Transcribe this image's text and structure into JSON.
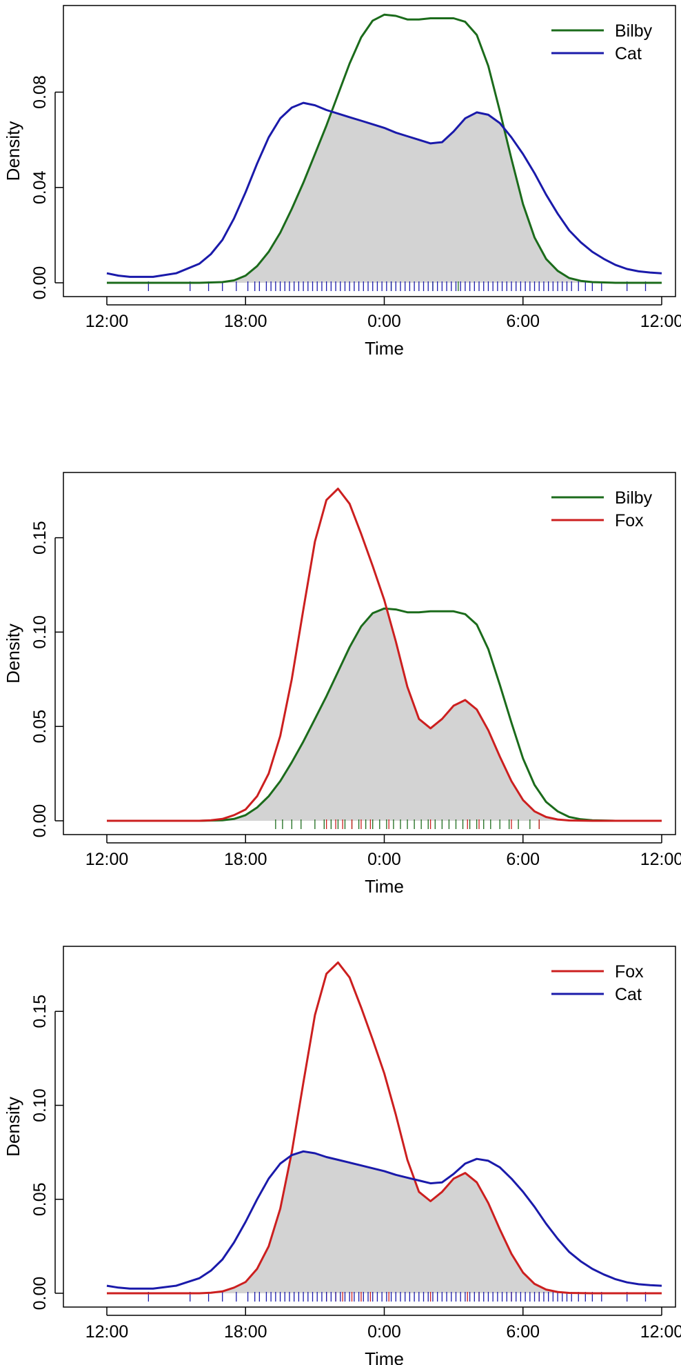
{
  "chart_data": [
    {
      "type": "line",
      "title": "",
      "xlabel": "Time",
      "ylabel": "Density",
      "xlim": [
        0,
        24
      ],
      "ylim": [
        0,
        0.112
      ],
      "x_ticks": [
        {
          "value": 0,
          "label": "12:00"
        },
        {
          "value": 6,
          "label": "18:00"
        },
        {
          "value": 12,
          "label": "0:00"
        },
        {
          "value": 18,
          "label": "6:00"
        },
        {
          "value": 24,
          "label": "12:00"
        }
      ],
      "y_ticks": [
        {
          "value": 0.0,
          "label": "0.00"
        },
        {
          "value": 0.04,
          "label": "0.04"
        },
        {
          "value": 0.08,
          "label": "0.08"
        }
      ],
      "legend_position": "top-right",
      "overlap_fill": "#d3d3d3",
      "series": [
        {
          "name": "Bilby",
          "color": "#1b6b1b",
          "x": [
            0,
            4,
            5,
            5.5,
            6,
            6.5,
            7,
            7.5,
            8,
            8.5,
            9,
            9.5,
            10,
            10.5,
            11,
            11.5,
            12,
            12.5,
            13,
            13.5,
            14,
            14.5,
            15,
            15.5,
            16,
            16.5,
            17,
            17.5,
            18,
            18.5,
            19,
            19.5,
            20,
            20.5,
            21,
            22,
            24
          ],
          "y": [
            0,
            0,
            0.0003,
            0.001,
            0.003,
            0.007,
            0.013,
            0.021,
            0.031,
            0.042,
            0.054,
            0.066,
            0.079,
            0.092,
            0.103,
            0.11,
            0.1125,
            0.112,
            0.1105,
            0.1105,
            0.111,
            0.111,
            0.111,
            0.1095,
            0.104,
            0.091,
            0.072,
            0.052,
            0.033,
            0.019,
            0.01,
            0.005,
            0.002,
            0.0008,
            0.0003,
            0,
            0
          ]
        },
        {
          "name": "Cat",
          "color": "#1a1aaa",
          "x": [
            0,
            0.5,
            1,
            2,
            3,
            4,
            4.5,
            5,
            5.5,
            6,
            6.5,
            7,
            7.5,
            8,
            8.5,
            9,
            9.5,
            10,
            10.5,
            11,
            11.5,
            12,
            12.5,
            13,
            13.5,
            14,
            14.5,
            15,
            15.5,
            16,
            16.5,
            17,
            17.5,
            18,
            18.5,
            19,
            19.5,
            20,
            20.5,
            21,
            21.5,
            22,
            22.5,
            23,
            23.5,
            24
          ],
          "y": [
            0.004,
            0.003,
            0.0025,
            0.0025,
            0.004,
            0.008,
            0.012,
            0.018,
            0.027,
            0.038,
            0.05,
            0.061,
            0.069,
            0.0735,
            0.0755,
            0.0745,
            0.0725,
            0.071,
            0.0695,
            0.068,
            0.0665,
            0.065,
            0.063,
            0.0615,
            0.06,
            0.0585,
            0.059,
            0.0635,
            0.069,
            0.0715,
            0.0705,
            0.067,
            0.061,
            0.054,
            0.046,
            0.037,
            0.029,
            0.022,
            0.017,
            0.013,
            0.01,
            0.0075,
            0.0058,
            0.0048,
            0.0043,
            0.004
          ]
        }
      ],
      "rug": [
        {
          "series": "Bilby",
          "color": "#1b6b1b",
          "x": [
            12.3,
            14.1,
            15.2
          ]
        },
        {
          "series": "Cat",
          "color": "#1a1aaa",
          "x": [
            1.8,
            3.6,
            4.4,
            5.0,
            5.6,
            6.1,
            6.4,
            6.6,
            6.9,
            7.1,
            7.3,
            7.5,
            7.7,
            7.9,
            8.1,
            8.3,
            8.5,
            8.7,
            8.9,
            9.1,
            9.3,
            9.5,
            9.7,
            9.9,
            10.1,
            10.3,
            10.5,
            10.7,
            10.9,
            11.1,
            11.3,
            11.5,
            11.7,
            11.9,
            12.1,
            12.3,
            12.5,
            12.7,
            12.9,
            13.1,
            13.3,
            13.5,
            13.7,
            13.9,
            14.1,
            14.3,
            14.5,
            14.7,
            14.9,
            15.1,
            15.3,
            15.5,
            15.7,
            15.9,
            16.1,
            16.3,
            16.5,
            16.7,
            16.9,
            17.1,
            17.3,
            17.5,
            17.7,
            17.9,
            18.1,
            18.3,
            18.5,
            18.7,
            18.9,
            19.1,
            19.3,
            19.5,
            19.7,
            19.9,
            20.1,
            20.4,
            20.7,
            21.0,
            21.4,
            22.5,
            23.3
          ]
        }
      ]
    },
    {
      "type": "line",
      "title": "",
      "xlabel": "Time",
      "ylabel": "Density",
      "xlim": [
        0,
        24
      ],
      "ylim": [
        0,
        0.178
      ],
      "x_ticks": [
        {
          "value": 0,
          "label": "12:00"
        },
        {
          "value": 6,
          "label": "18:00"
        },
        {
          "value": 12,
          "label": "0:00"
        },
        {
          "value": 18,
          "label": "6:00"
        },
        {
          "value": 24,
          "label": "12:00"
        }
      ],
      "y_ticks": [
        {
          "value": 0.0,
          "label": "0.00"
        },
        {
          "value": 0.05,
          "label": "0.05"
        },
        {
          "value": 0.1,
          "label": "0.10"
        },
        {
          "value": 0.15,
          "label": "0.15"
        }
      ],
      "legend_position": "top-right",
      "overlap_fill": "#d3d3d3",
      "series": [
        {
          "name": "Bilby",
          "color": "#1b6b1b",
          "x": [
            0,
            4,
            5,
            5.5,
            6,
            6.5,
            7,
            7.5,
            8,
            8.5,
            9,
            9.5,
            10,
            10.5,
            11,
            11.5,
            12,
            12.5,
            13,
            13.5,
            14,
            14.5,
            15,
            15.5,
            16,
            16.5,
            17,
            17.5,
            18,
            18.5,
            19,
            19.5,
            20,
            20.5,
            21,
            22,
            24
          ],
          "y": [
            0,
            0,
            0.0003,
            0.001,
            0.003,
            0.007,
            0.013,
            0.021,
            0.031,
            0.042,
            0.054,
            0.066,
            0.079,
            0.092,
            0.103,
            0.11,
            0.1125,
            0.112,
            0.1105,
            0.1105,
            0.111,
            0.111,
            0.111,
            0.1095,
            0.104,
            0.091,
            0.072,
            0.052,
            0.033,
            0.019,
            0.01,
            0.005,
            0.002,
            0.0008,
            0.0003,
            0,
            0
          ]
        },
        {
          "name": "Fox",
          "color": "#cc1f1f",
          "x": [
            0,
            4,
            4.5,
            5,
            5.5,
            6,
            6.5,
            7,
            7.5,
            8,
            8.5,
            9,
            9.5,
            10,
            10.5,
            11,
            11.5,
            12,
            12.5,
            13,
            13.5,
            14,
            14.5,
            15,
            15.5,
            16,
            16.5,
            17,
            17.5,
            18,
            18.5,
            19,
            19.5,
            20,
            21,
            24
          ],
          "y": [
            0,
            0,
            0.0003,
            0.001,
            0.003,
            0.006,
            0.013,
            0.025,
            0.045,
            0.075,
            0.112,
            0.148,
            0.17,
            0.176,
            0.168,
            0.152,
            0.135,
            0.117,
            0.095,
            0.071,
            0.054,
            0.049,
            0.054,
            0.061,
            0.064,
            0.059,
            0.048,
            0.034,
            0.021,
            0.011,
            0.005,
            0.002,
            0.0007,
            0.0002,
            0,
            0
          ]
        }
      ],
      "rug": [
        {
          "series": "Bilby",
          "color": "#1b6b1b",
          "x": [
            7.3,
            7.6,
            8.0,
            8.4,
            9.0,
            9.4,
            9.7,
            10.0,
            10.3,
            10.6,
            10.9,
            11.2,
            11.5,
            11.8,
            12.1,
            12.4,
            12.7,
            13.0,
            13.3,
            13.6,
            13.9,
            14.2,
            14.5,
            14.8,
            15.1,
            15.4,
            15.7,
            16.0,
            16.3,
            16.6,
            17.0,
            17.4,
            17.8,
            18.3,
            18.7
          ]
        },
        {
          "series": "Fox",
          "color": "#cc1f1f",
          "x": [
            9.5,
            9.9,
            10.2,
            10.6,
            11.0,
            11.4,
            12.2,
            14.0,
            15.6,
            16.1,
            17.5,
            18.7
          ]
        }
      ]
    },
    {
      "type": "line",
      "title": "",
      "xlabel": "Time",
      "ylabel": "Density",
      "xlim": [
        0,
        24
      ],
      "ylim": [
        0,
        0.178
      ],
      "x_ticks": [
        {
          "value": 0,
          "label": "12:00"
        },
        {
          "value": 6,
          "label": "18:00"
        },
        {
          "value": 12,
          "label": "0:00"
        },
        {
          "value": 18,
          "label": "6:00"
        },
        {
          "value": 24,
          "label": "12:00"
        }
      ],
      "y_ticks": [
        {
          "value": 0.0,
          "label": "0.00"
        },
        {
          "value": 0.05,
          "label": "0.05"
        },
        {
          "value": 0.1,
          "label": "0.10"
        },
        {
          "value": 0.15,
          "label": "0.15"
        }
      ],
      "legend_position": "top-right",
      "overlap_fill": "#d3d3d3",
      "series": [
        {
          "name": "Fox",
          "color": "#cc1f1f",
          "x": [
            0,
            4,
            4.5,
            5,
            5.5,
            6,
            6.5,
            7,
            7.5,
            8,
            8.5,
            9,
            9.5,
            10,
            10.5,
            11,
            11.5,
            12,
            12.5,
            13,
            13.5,
            14,
            14.5,
            15,
            15.5,
            16,
            16.5,
            17,
            17.5,
            18,
            18.5,
            19,
            19.5,
            20,
            21,
            24
          ],
          "y": [
            0,
            0,
            0.0003,
            0.001,
            0.003,
            0.006,
            0.013,
            0.025,
            0.045,
            0.075,
            0.112,
            0.148,
            0.17,
            0.176,
            0.168,
            0.152,
            0.135,
            0.117,
            0.095,
            0.071,
            0.054,
            0.049,
            0.054,
            0.061,
            0.064,
            0.059,
            0.048,
            0.034,
            0.021,
            0.011,
            0.005,
            0.002,
            0.0007,
            0.0002,
            0,
            0
          ]
        },
        {
          "name": "Cat",
          "color": "#1a1aaa",
          "x": [
            0,
            0.5,
            1,
            2,
            3,
            4,
            4.5,
            5,
            5.5,
            6,
            6.5,
            7,
            7.5,
            8,
            8.5,
            9,
            9.5,
            10,
            10.5,
            11,
            11.5,
            12,
            12.5,
            13,
            13.5,
            14,
            14.5,
            15,
            15.5,
            16,
            16.5,
            17,
            17.5,
            18,
            18.5,
            19,
            19.5,
            20,
            20.5,
            21,
            21.5,
            22,
            22.5,
            23,
            23.5,
            24
          ],
          "y": [
            0.004,
            0.003,
            0.0025,
            0.0025,
            0.004,
            0.008,
            0.012,
            0.018,
            0.027,
            0.038,
            0.05,
            0.061,
            0.069,
            0.0735,
            0.0755,
            0.0745,
            0.0725,
            0.071,
            0.0695,
            0.068,
            0.0665,
            0.065,
            0.063,
            0.0615,
            0.06,
            0.0585,
            0.059,
            0.0635,
            0.069,
            0.0715,
            0.0705,
            0.067,
            0.061,
            0.054,
            0.046,
            0.037,
            0.029,
            0.022,
            0.017,
            0.013,
            0.01,
            0.0075,
            0.0058,
            0.0048,
            0.0043,
            0.004
          ]
        }
      ],
      "rug": [
        {
          "series": "Fox",
          "color": "#cc1f1f",
          "x": [
            9.5,
            9.9,
            10.2,
            10.6,
            11.0,
            11.4,
            12.2,
            14.0,
            15.6,
            16.1,
            17.5,
            18.7
          ]
        },
        {
          "series": "Cat",
          "color": "#1a1aaa",
          "x": [
            1.8,
            3.6,
            4.4,
            5.0,
            5.6,
            6.1,
            6.4,
            6.6,
            6.9,
            7.1,
            7.3,
            7.5,
            7.7,
            7.9,
            8.1,
            8.3,
            8.5,
            8.7,
            8.9,
            9.1,
            9.3,
            9.5,
            9.7,
            9.9,
            10.1,
            10.3,
            10.5,
            10.7,
            10.9,
            11.1,
            11.3,
            11.5,
            11.7,
            11.9,
            12.1,
            12.3,
            12.5,
            12.7,
            12.9,
            13.1,
            13.3,
            13.5,
            13.7,
            13.9,
            14.1,
            14.3,
            14.5,
            14.7,
            14.9,
            15.1,
            15.3,
            15.5,
            15.7,
            15.9,
            16.1,
            16.3,
            16.5,
            16.7,
            16.9,
            17.1,
            17.3,
            17.5,
            17.7,
            17.9,
            18.1,
            18.3,
            18.5,
            18.7,
            18.9,
            19.1,
            19.3,
            19.5,
            19.7,
            19.9,
            20.1,
            20.4,
            20.7,
            21.0,
            21.4,
            22.5,
            23.3
          ]
        }
      ]
    }
  ]
}
